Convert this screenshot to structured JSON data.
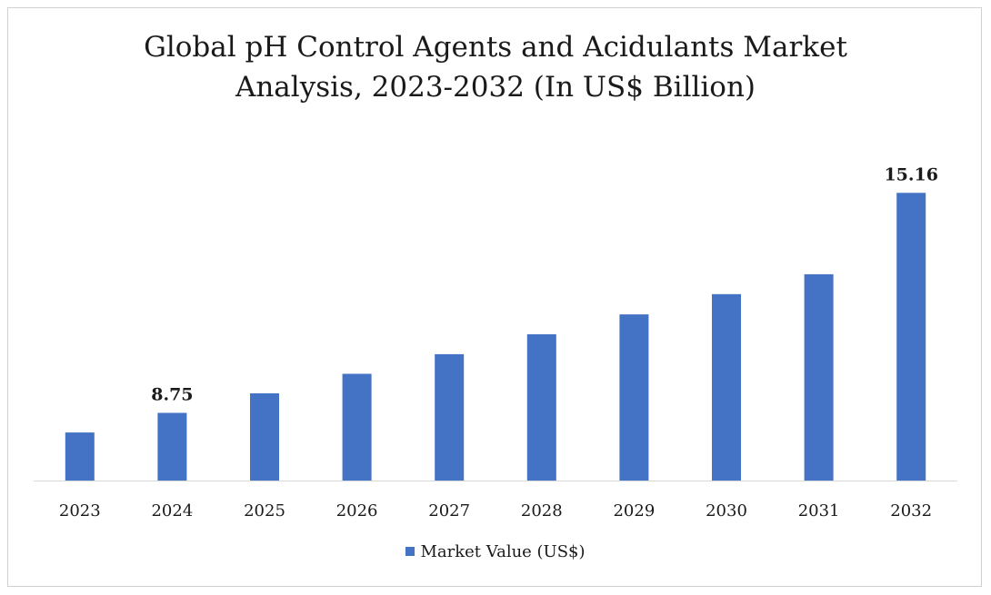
{
  "chart_data": {
    "type": "bar",
    "title_lines": [
      "Global pH Control Agents and Acidulants Market",
      "Analysis, 2023-2032 (In US$ Billion)"
    ],
    "categories": [
      "2023",
      "2024",
      "2025",
      "2026",
      "2027",
      "2028",
      "2029",
      "2030",
      "2031",
      "2032"
    ],
    "series": [
      {
        "name": "Market Value (US$)",
        "values": [
          8.18,
          8.75,
          9.32,
          9.89,
          10.46,
          11.04,
          11.62,
          12.21,
          12.79,
          15.16
        ],
        "data_labels": {
          "1": "8.75",
          "9": "15.16"
        }
      }
    ],
    "ylim": [
      6.78,
      15.75
    ],
    "grid": false,
    "legend_position": "bottom",
    "bar_color": "#4472c4"
  }
}
